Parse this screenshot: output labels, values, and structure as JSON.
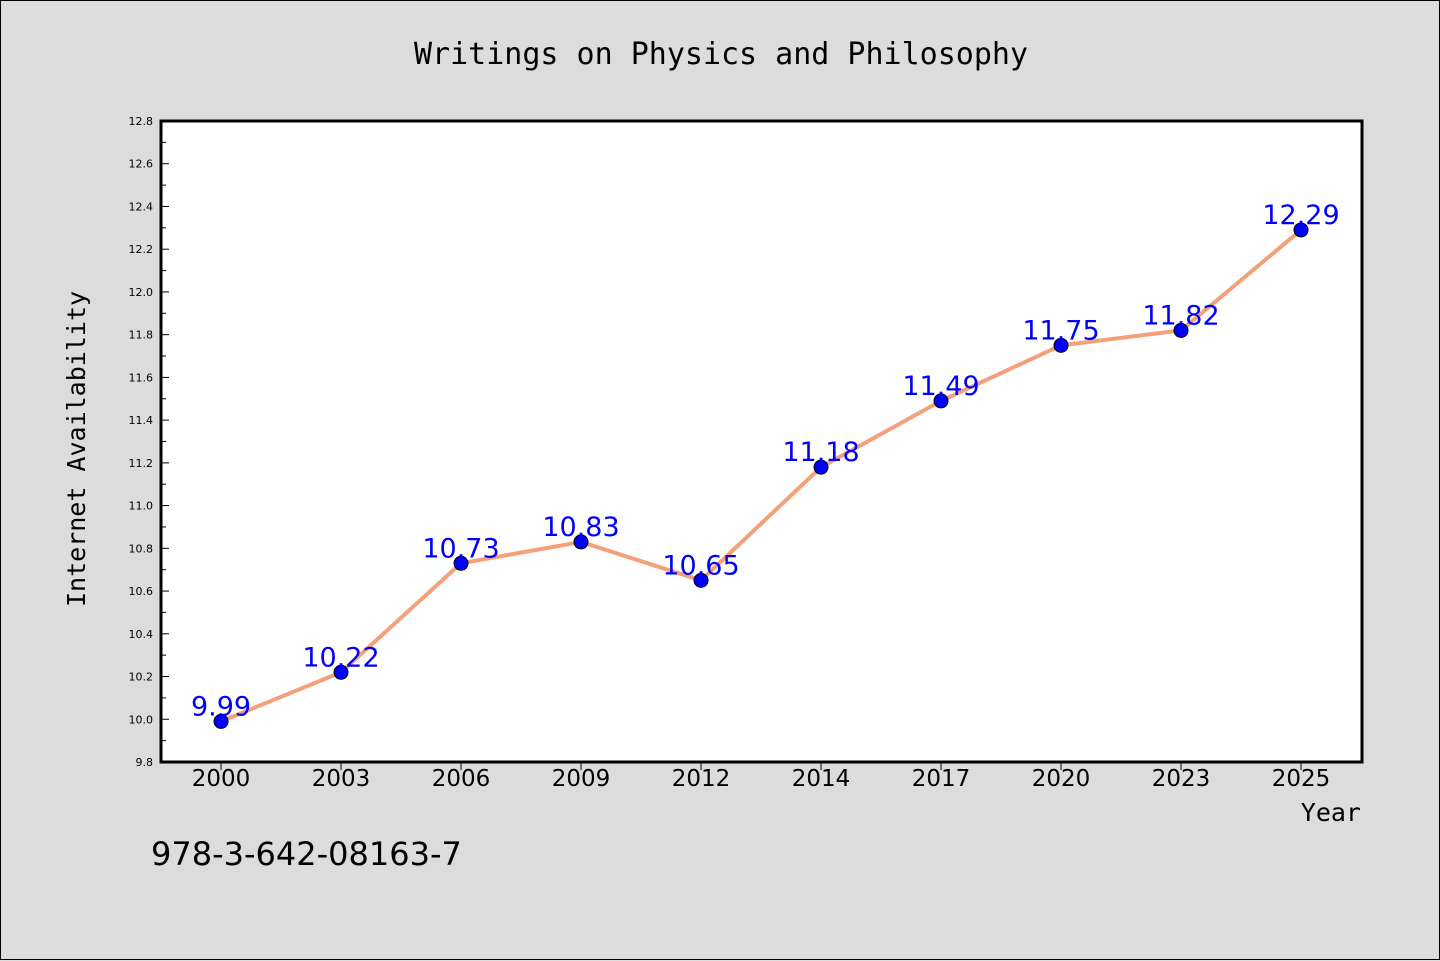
{
  "chart_data": {
    "type": "line",
    "title": "Writings on Physics and Philosophy",
    "xlabel": "Year",
    "ylabel": "Internet Availability",
    "categories": [
      "2000",
      "2003",
      "2006",
      "2009",
      "2012",
      "2014",
      "2017",
      "2020",
      "2023",
      "2025"
    ],
    "values": [
      9.99,
      10.22,
      10.73,
      10.83,
      10.65,
      11.18,
      11.49,
      11.75,
      11.82,
      12.29
    ],
    "data_labels": [
      "9.99",
      "10.22",
      "10.73",
      "10.83",
      "10.65",
      "11.18",
      "11.49",
      "11.75",
      "11.82",
      "12.29"
    ],
    "ylim": [
      9.8,
      12.8
    ],
    "yticks": [
      "9.8",
      "10.0",
      "10.2",
      "10.4",
      "10.6",
      "10.8",
      "11.0",
      "11.2",
      "11.4",
      "11.6",
      "11.8",
      "12.0",
      "12.2",
      "12.4",
      "12.6",
      "12.8"
    ],
    "grid": false,
    "line_color": "#f4a07a",
    "marker_color": "#0000ff",
    "label_color": "#0000ff"
  },
  "footer": {
    "isbn": "978-3-642-08163-7"
  }
}
